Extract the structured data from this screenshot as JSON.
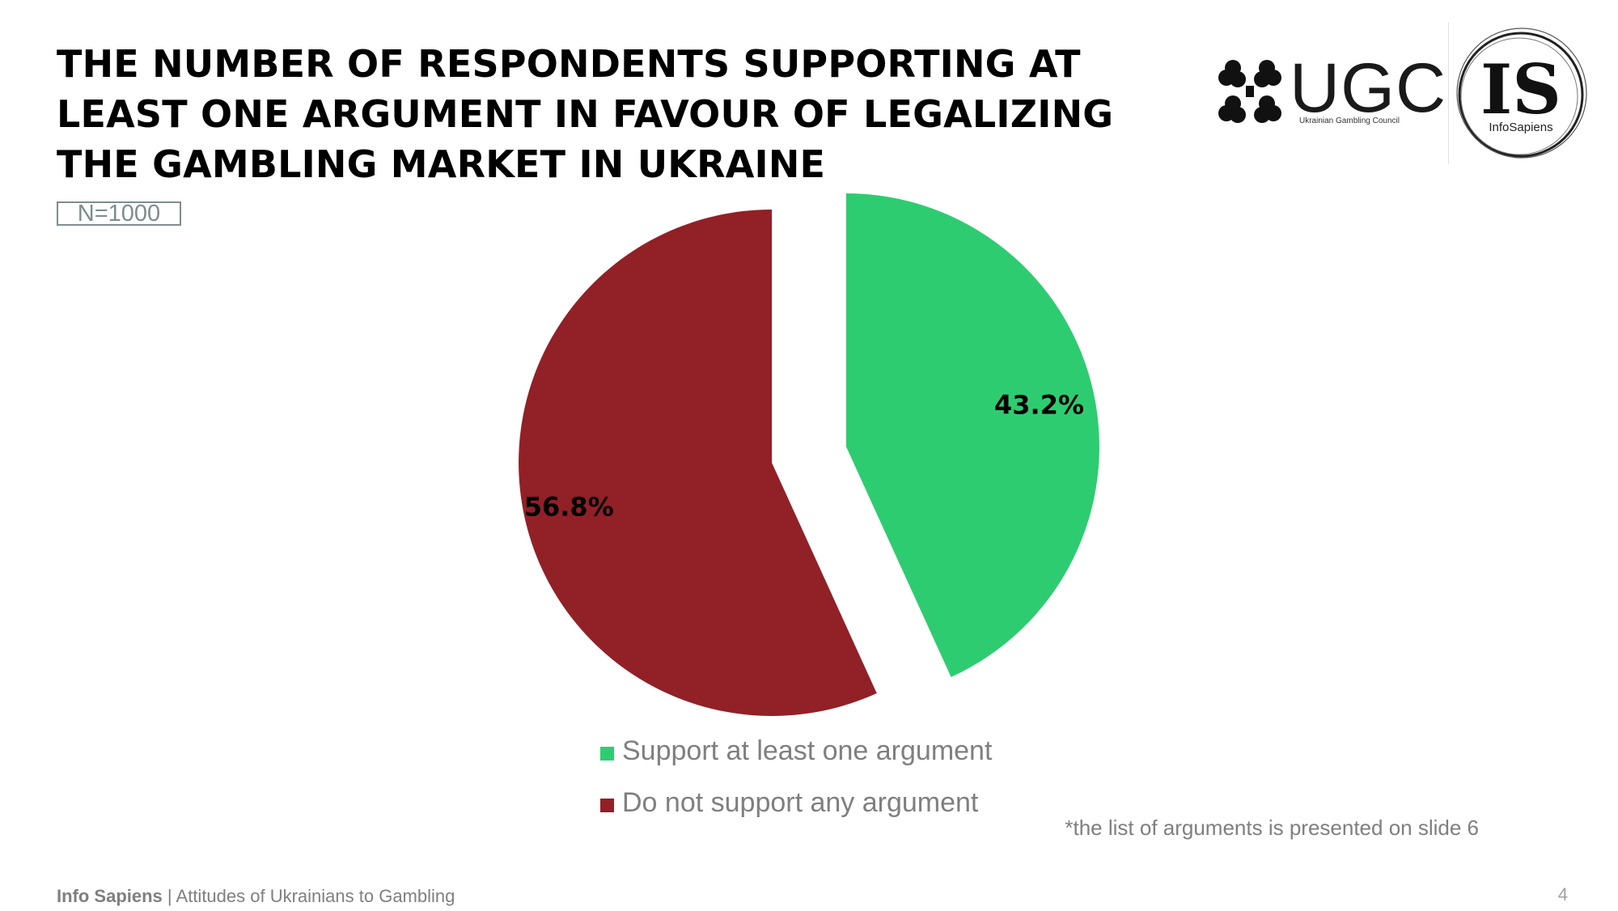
{
  "slide": {
    "title_lines": [
      "THE NUMBER OF RESPONDENTS SUPPORTING AT",
      "LEAST ONE ARGUMENT IN FAVOUR OF LEGALIZING",
      "THE GAMBLING MARKET IN UKRAINE"
    ],
    "sample_size": "N=1000",
    "footnote": "*the list of arguments is presented on slide 6",
    "page_number": "4"
  },
  "logos": {
    "ugc_text": "UGC",
    "ugc_subtitle": "Ukrainian Gambling Council",
    "is_text": "IS",
    "is_subtitle": "InfoSapiens"
  },
  "footer": {
    "brand": "Info Sapiens",
    "separator": " | ",
    "subtitle": "Attitudes of Ukrainians to Gambling"
  },
  "chart_data": {
    "type": "pie",
    "slices": [
      {
        "label": "Support at least one argument",
        "value": 43.2,
        "display": "43.2%",
        "color": "#2ecc71"
      },
      {
        "label": "Do not support any argument",
        "value": 56.8,
        "display": "56.8%",
        "color": "#922027"
      }
    ],
    "legend_position": "bottom"
  }
}
